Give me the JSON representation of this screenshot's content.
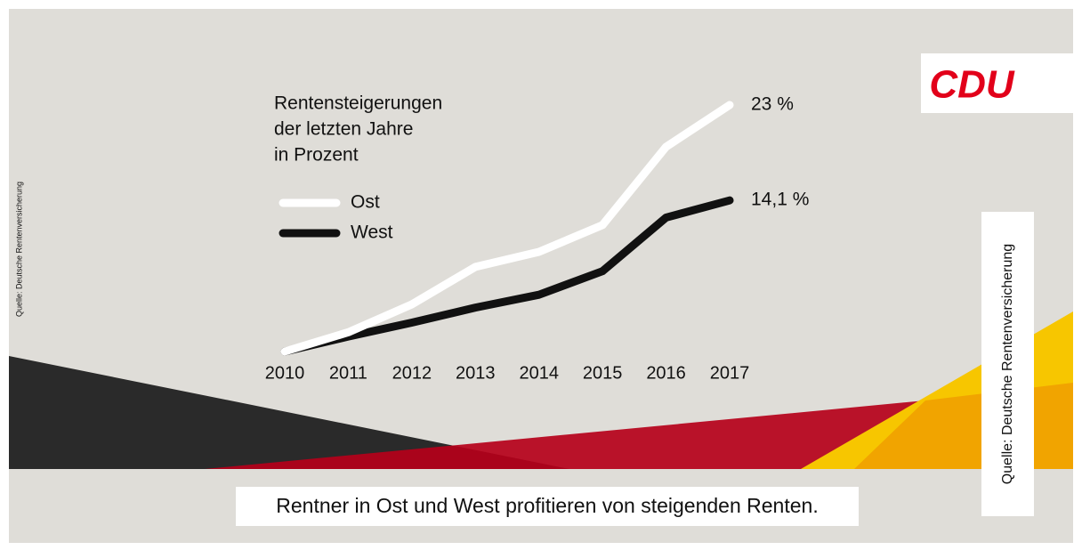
{
  "chart_data": {
    "type": "line",
    "title": [
      "Rentensteigerungen",
      "der letzten Jahre",
      "in Prozent"
    ],
    "categories": [
      "2010",
      "2011",
      "2012",
      "2013",
      "2014",
      "2015",
      "2016",
      "2017"
    ],
    "series": [
      {
        "name": "Ost",
        "color": "#ffffff",
        "values": [
          0,
          1.8,
          4.4,
          7.9,
          9.3,
          11.8,
          19.1,
          23
        ],
        "value_labels": [
          null,
          null,
          null,
          null,
          null,
          null,
          null,
          "23 %"
        ]
      },
      {
        "name": "West",
        "color": "#111111",
        "values": [
          0,
          1.4,
          2.7,
          4.1,
          5.3,
          7.5,
          12.5,
          14.1
        ],
        "value_labels": [
          null,
          null,
          null,
          null,
          null,
          null,
          null,
          "14,1 %"
        ]
      }
    ],
    "ylim": [
      0,
      23
    ],
    "caption": "Rentner in Ost und West profitieren von steigenden Renten.",
    "logo": "CDU",
    "sources": [
      "Quelle: Deutsche Rentenversicherung",
      "Quelle: Deutsche Rentenversicherung"
    ]
  }
}
